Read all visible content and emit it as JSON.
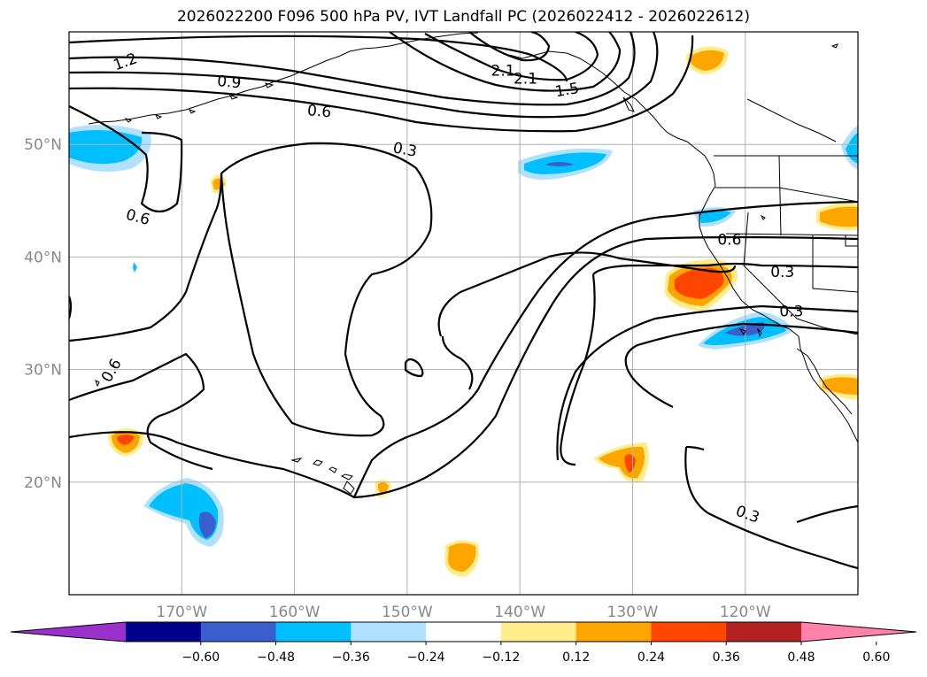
{
  "title": "2026022200 F096 500 hPa PV, IVT Landfall PC (2026022412 - 2026022612)",
  "map": {
    "lon_range": [
      -180,
      -110
    ],
    "lat_range": [
      10,
      60
    ],
    "lon_ticks": [
      {
        "value": -170,
        "label": "170°W"
      },
      {
        "value": -160,
        "label": "160°W"
      },
      {
        "value": -150,
        "label": "150°W"
      },
      {
        "value": -140,
        "label": "140°W"
      },
      {
        "value": -130,
        "label": "130°W"
      },
      {
        "value": -120,
        "label": "120°W"
      }
    ],
    "lat_ticks": [
      {
        "value": 20,
        "label": "20°N"
      },
      {
        "value": 30,
        "label": "30°N"
      },
      {
        "value": 40,
        "label": "40°N"
      },
      {
        "value": 50,
        "label": "50°N"
      }
    ],
    "grid": true
  },
  "contour_labels": [
    {
      "text": "2.1",
      "lon": -141.5,
      "lat": 56.5,
      "rot": 0
    },
    {
      "text": "2.1",
      "lon": -139.5,
      "lat": 55.8,
      "rot": 0
    },
    {
      "text": "1.5",
      "lon": -135.8,
      "lat": 54.8,
      "rot": -10
    },
    {
      "text": "1.2",
      "lon": -175.0,
      "lat": 57.3,
      "rot": -20
    },
    {
      "text": "0.9",
      "lon": -165.8,
      "lat": 55.5,
      "rot": 5
    },
    {
      "text": "0.6",
      "lon": -157.8,
      "lat": 52.9,
      "rot": 5
    },
    {
      "text": "0.3",
      "lon": -150.2,
      "lat": 49.5,
      "rot": 10
    },
    {
      "text": "0.6",
      "lon": -173.9,
      "lat": 43.5,
      "rot": 15
    },
    {
      "text": "0.6",
      "lon": -176.2,
      "lat": 29.9,
      "rot": -60
    },
    {
      "text": "0.6",
      "lon": -121.4,
      "lat": 41.5,
      "rot": 0
    },
    {
      "text": "0.3",
      "lon": -116.7,
      "lat": 38.6,
      "rot": 0
    },
    {
      "text": "0.3",
      "lon": -115.9,
      "lat": 35.1,
      "rot": 0
    },
    {
      "text": "0.3",
      "lon": -119.8,
      "lat": 17.1,
      "rot": 20
    }
  ],
  "colorbar": {
    "colors": [
      "#9932CC",
      "#00008B",
      "#3A5FCD",
      "#00BFFF",
      "#B0E2FF",
      "#FFFFFF",
      "#FFEC8B",
      "#FFA500",
      "#FF4500",
      "#B22222",
      "#FF82AB"
    ],
    "tick_labels": [
      "−0.60",
      "−0.48",
      "−0.36",
      "−0.24",
      "−0.12",
      "0.12",
      "0.24",
      "0.36",
      "0.48",
      "0.60"
    ]
  },
  "shading_colors": {
    "neg_1": "#B0E2FF",
    "neg_2": "#00BFFF",
    "neg_3": "#3A5FCD",
    "pos_1": "#FFEC8B",
    "pos_2": "#FFA500",
    "pos_3": "#FF4500"
  }
}
